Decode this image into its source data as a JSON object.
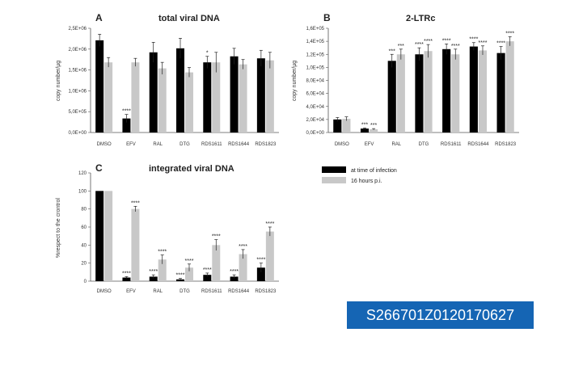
{
  "colors": {
    "infection": "#000000",
    "post": "#c8c8c8",
    "axis": "#555555"
  },
  "legend": {
    "labels": [
      "at time of infection",
      "16 hours p.i."
    ]
  },
  "watermark_id": "S266701Z0120170627",
  "chart_data": [
    {
      "type": "bar",
      "panel": "A",
      "title": "total viral DNA",
      "ylabel": "copy number/µg",
      "xlabel": "",
      "ylim": [
        0,
        2600000
      ],
      "yticks": [
        "0,0E+00",
        "5,0E+05",
        "1,0E+06",
        "1,5E+06",
        "2,0E+06",
        "2,5E+06"
      ],
      "categories": [
        "DMSO",
        "EFV",
        "RAL",
        "DTG",
        "RDS1611",
        "RDS1644",
        "RDS1823"
      ],
      "series": [
        {
          "values": [
            2300000,
            350000,
            2000000,
            2100000,
            1750000,
            1900000,
            1850000
          ],
          "errors": [
            150000,
            100000,
            250000,
            250000,
            150000,
            200000,
            200000
          ]
        },
        {
          "values": [
            1750000,
            1750000,
            1600000,
            1500000,
            1750000,
            1700000,
            1800000
          ],
          "errors": [
            120000,
            100000,
            150000,
            120000,
            250000,
            120000,
            200000
          ]
        }
      ],
      "stars": [
        [
          "",
          "****",
          "",
          "",
          "*",
          "",
          ""
        ],
        [
          "",
          "",
          "",
          "",
          "",
          "",
          ""
        ]
      ]
    },
    {
      "type": "bar",
      "panel": "B",
      "title": "2-LTRc",
      "ylabel": "copy number/µg",
      "xlabel": "",
      "ylim": [
        0,
        160000
      ],
      "yticks": [
        "0,0E+00",
        "2,0E+04",
        "4,0E+04",
        "6,0E+04",
        "8,0E+04",
        "1,0E+05",
        "1,2E+05",
        "1,4E+05",
        "1,6E+05"
      ],
      "categories": [
        "DMSO",
        "EFV",
        "RAL",
        "DTG",
        "RDS1611",
        "RDS1644",
        "RDS1823"
      ],
      "series": [
        {
          "values": [
            20000,
            6000,
            110000,
            120000,
            128000,
            132000,
            122000
          ],
          "errors": [
            3000,
            1000,
            10000,
            10000,
            8000,
            6000,
            10000
          ]
        },
        {
          "values": [
            21000,
            5000,
            120000,
            125000,
            120000,
            126000,
            140000
          ],
          "errors": [
            3000,
            1000,
            8000,
            10000,
            8000,
            7000,
            7000
          ]
        }
      ],
      "stars": [
        [
          "",
          "***",
          "***",
          "****",
          "****",
          "****",
          "****"
        ],
        [
          "",
          "***",
          "***",
          "****",
          "****",
          "****",
          "****"
        ]
      ]
    },
    {
      "type": "bar",
      "panel": "C",
      "title": "integrated viral DNA",
      "ylabel": "%respect to the crontrol",
      "xlabel": "",
      "ylim": [
        0,
        120
      ],
      "yticks": [
        "0",
        "20",
        "40",
        "60",
        "80",
        "100",
        "120"
      ],
      "categories": [
        "DMSO",
        "EFV",
        "RAL",
        "DTG",
        "RDS1611",
        "RDS1644",
        "RDS1823"
      ],
      "series": [
        {
          "values": [
            100,
            4,
            5,
            2,
            7,
            5,
            15
          ],
          "errors": [
            0,
            1,
            2,
            1,
            2,
            2,
            5
          ]
        },
        {
          "values": [
            100,
            80,
            24,
            15,
            40,
            30,
            55
          ],
          "errors": [
            0,
            3,
            5,
            4,
            6,
            5,
            5
          ]
        }
      ],
      "stars": [
        [
          "",
          "****",
          "****",
          "****",
          "****",
          "****",
          "****"
        ],
        [
          "",
          "****",
          "****",
          "****",
          "****",
          "****",
          "****"
        ]
      ]
    }
  ]
}
